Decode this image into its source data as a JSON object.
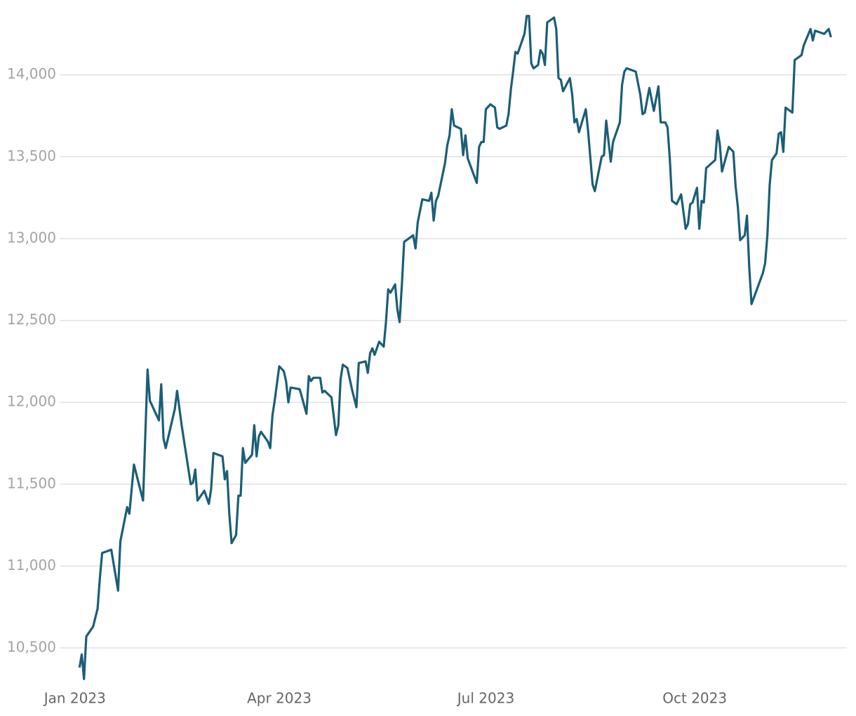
{
  "chart_data": {
    "type": "line",
    "x": [
      2,
      3,
      4,
      5,
      8,
      10,
      11,
      12,
      16,
      19,
      20,
      23,
      24,
      26,
      30,
      31,
      32,
      33,
      37,
      38,
      39,
      40,
      44,
      45,
      47,
      51,
      52,
      53,
      54,
      57,
      59,
      60,
      61,
      65,
      66,
      67,
      68,
      69,
      71,
      72,
      73,
      74,
      75,
      78,
      79,
      80,
      81,
      82,
      85,
      86,
      87,
      88,
      90,
      92,
      93,
      94,
      95,
      99,
      100,
      102,
      103,
      104,
      105,
      107,
      108,
      109,
      110,
      113,
      115,
      116,
      117,
      118,
      120,
      122,
      124,
      125,
      128,
      129,
      130,
      131,
      132,
      134,
      136,
      137,
      138,
      139,
      141,
      142,
      143,
      144,
      145,
      149,
      150,
      151,
      153,
      156,
      157,
      158,
      159,
      160,
      163,
      164,
      165,
      166,
      167,
      170,
      171,
      172,
      173,
      177,
      178,
      179,
      180,
      181,
      183,
      185,
      186,
      187,
      190,
      191,
      192,
      193,
      194,
      195,
      198,
      199,
      200,
      201,
      202,
      204,
      205,
      206,
      207,
      208,
      211,
      212,
      213,
      214,
      215,
      218,
      219,
      220,
      221,
      222,
      225,
      226,
      228,
      229,
      232,
      233,
      234,
      236,
      237,
      240,
      241,
      242,
      243,
      247,
      249,
      250,
      251,
      253,
      255,
      257,
      258,
      260,
      261,
      262,
      263,
      265,
      267,
      269,
      270,
      271,
      272,
      274,
      275,
      276,
      277,
      278,
      282,
      283,
      284,
      285,
      288,
      290,
      291,
      292,
      293,
      295,
      296,
      297,
      298,
      303,
      304,
      305,
      306,
      307,
      309,
      310,
      311,
      312,
      313,
      316,
      317,
      320,
      321,
      324,
      325,
      326,
      330,
      332,
      333
    ],
    "series": [
      {
        "color": "#1b5e78",
        "values": [
          10380,
          10460,
          10310,
          10570,
          10630,
          10740,
          10930,
          11080,
          11100,
          10850,
          11150,
          11360,
          11320,
          11620,
          11400,
          11800,
          12200,
          12010,
          11890,
          12110,
          11780,
          11720,
          11960,
          12070,
          11860,
          11500,
          11510,
          11590,
          11400,
          11460,
          11380,
          11470,
          11690,
          11670,
          11530,
          11580,
          11320,
          11140,
          11190,
          11430,
          11430,
          11720,
          11630,
          11680,
          11860,
          11670,
          11790,
          11820,
          11760,
          11720,
          11920,
          12010,
          12220,
          12190,
          12130,
          12000,
          12090,
          12080,
          12030,
          11930,
          12160,
          12130,
          12150,
          12150,
          12150,
          12060,
          12070,
          12030,
          11800,
          11860,
          12140,
          12230,
          12210,
          12080,
          11970,
          12240,
          12250,
          12180,
          12300,
          12330,
          12290,
          12370,
          12340,
          12490,
          12690,
          12670,
          12720,
          12570,
          12490,
          12720,
          12980,
          13020,
          12940,
          13100,
          13240,
          13230,
          13280,
          13110,
          13230,
          13260,
          13460,
          13570,
          13630,
          13790,
          13690,
          13670,
          13510,
          13630,
          13490,
          13340,
          13560,
          13590,
          13590,
          13790,
          13820,
          13800,
          13680,
          13670,
          13690,
          13760,
          13910,
          14020,
          14140,
          14130,
          14250,
          14360,
          14360,
          14070,
          14040,
          14060,
          14150,
          14130,
          14060,
          14320,
          14350,
          14280,
          13980,
          13970,
          13900,
          13980,
          13880,
          13710,
          13730,
          13650,
          13790,
          13660,
          13330,
          13290,
          13500,
          13510,
          13720,
          13470,
          13590,
          13710,
          13940,
          14020,
          14040,
          14020,
          13880,
          13760,
          13770,
          13920,
          13780,
          13930,
          13710,
          13710,
          13680,
          13490,
          13230,
          13210,
          13270,
          13060,
          13090,
          13210,
          13220,
          13310,
          13060,
          13230,
          13220,
          13430,
          13480,
          13660,
          13580,
          13410,
          13560,
          13530,
          13320,
          13190,
          12990,
          13020,
          13140,
          12820,
          12600,
          12790,
          12850,
          13020,
          13330,
          13480,
          13520,
          13640,
          13650,
          13530,
          13800,
          13770,
          14090,
          14120,
          14180,
          14280,
          14210,
          14270,
          14250,
          14280,
          14230
        ]
      }
    ],
    "xlim": [
      -33,
      340
    ],
    "xticks": [
      {
        "value": 0,
        "label": "Jan 2023"
      },
      {
        "value": 90,
        "label": "Apr 2023"
      },
      {
        "value": 181,
        "label": "Jul 2023"
      },
      {
        "value": 273,
        "label": "Oct 2023"
      }
    ],
    "ylim": [
      10290,
      14380
    ],
    "yticks": [
      {
        "value": 10500,
        "label": "10,500"
      },
      {
        "value": 11000,
        "label": "11,000"
      },
      {
        "value": 11500,
        "label": "11,500"
      },
      {
        "value": 12000,
        "label": "12,000"
      },
      {
        "value": 12500,
        "label": "12,500"
      },
      {
        "value": 13000,
        "label": "13,000"
      },
      {
        "value": 13500,
        "label": "13,500"
      },
      {
        "value": 14000,
        "label": "14,000"
      }
    ],
    "grid": true
  }
}
